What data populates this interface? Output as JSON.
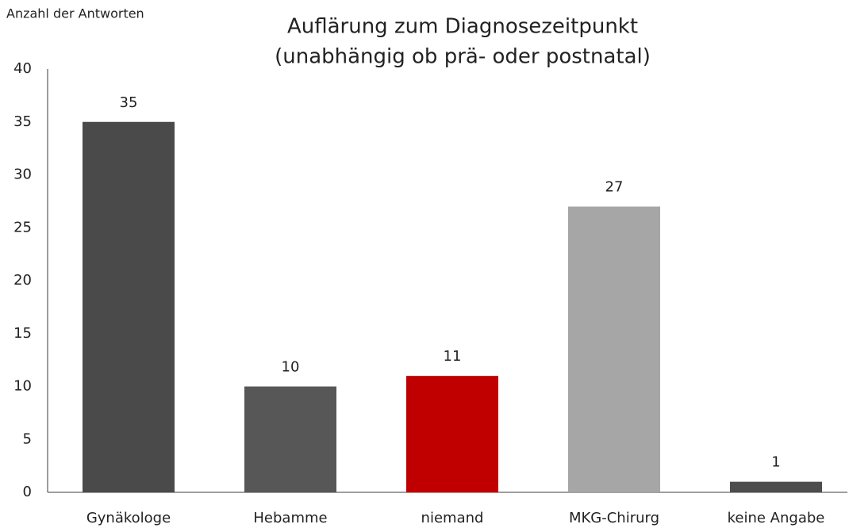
{
  "chart_data": {
    "type": "bar",
    "title": [
      "Auflärung zum Diagnosezeitpunkt",
      "(unabhängig ob prä- oder postnatal)"
    ],
    "y_label": "Anzahl der Antworten",
    "categories": [
      "Gynäkologe",
      "Hebamme",
      "niemand",
      "MKG-Chirurg",
      "keine Angabe"
    ],
    "values": [
      35,
      10,
      11,
      27,
      1
    ],
    "colors": [
      "#4a4a4a",
      "#575757",
      "#c00000",
      "#a6a6a6",
      "#4d4d4d"
    ],
    "ylim": [
      0,
      40
    ],
    "yticks": [
      0,
      5,
      10,
      15,
      20,
      25,
      30,
      35,
      40
    ],
    "grid": false
  }
}
